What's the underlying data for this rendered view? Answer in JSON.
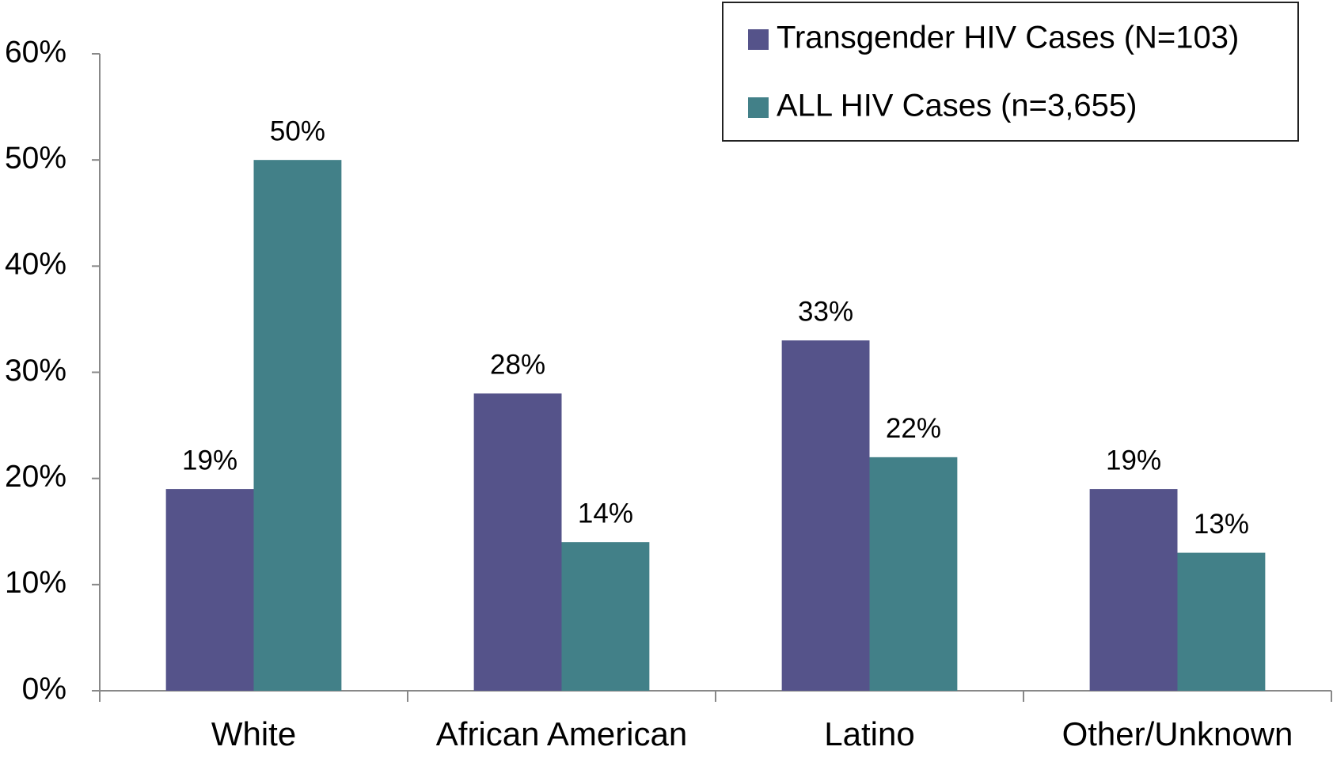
{
  "chart_data": {
    "type": "bar",
    "categories": [
      "White",
      "African American",
      "Latino",
      "Other/Unknown"
    ],
    "series": [
      {
        "name": "Transgender HIV Cases (N=103)",
        "color": "#55538a",
        "values": [
          19,
          28,
          33,
          19
        ],
        "value_labels": [
          "19%",
          "28%",
          "33%",
          "19%"
        ]
      },
      {
        "name": "ALL HIV Cases (n=3,655)",
        "color": "#428088",
        "values": [
          50,
          14,
          22,
          13
        ],
        "value_labels": [
          "50%",
          "14%",
          "22%",
          "13%"
        ]
      }
    ],
    "ylim": [
      0,
      60
    ],
    "yticks": [
      {
        "value": 0,
        "label": "0%"
      },
      {
        "value": 10,
        "label": "10%"
      },
      {
        "value": 20,
        "label": "20%"
      },
      {
        "value": 30,
        "label": "30%"
      },
      {
        "value": 40,
        "label": "40%"
      },
      {
        "value": 50,
        "label": "50%"
      },
      {
        "value": 60,
        "label": "60%"
      }
    ],
    "legend": "upper right"
  }
}
